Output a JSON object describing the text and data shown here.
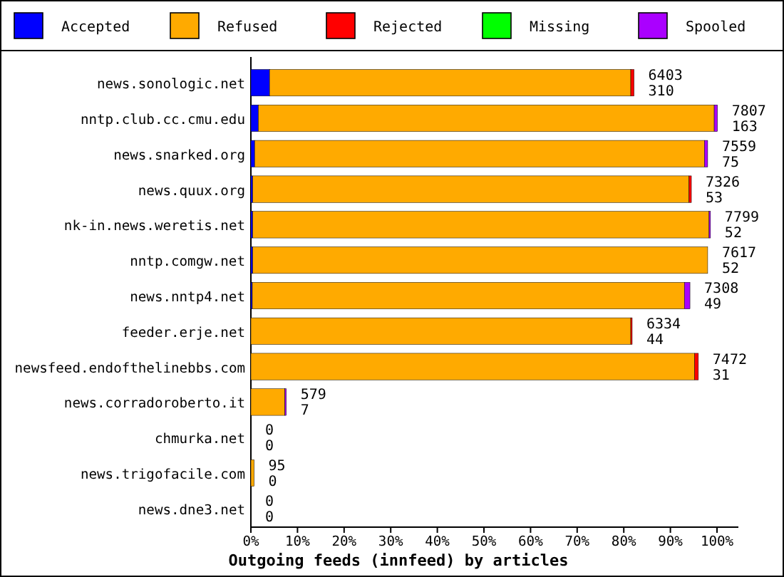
{
  "chart_data": {
    "type": "bar",
    "orientation": "horizontal",
    "stacked": true,
    "legend": "top",
    "xlabel": "Outgoing feeds (innfeed) by articles",
    "categories": [
      "news.sonologic.net",
      "nntp.club.cc.cmu.edu",
      "news.snarked.org",
      "news.quux.org",
      "nk-in.news.weretis.net",
      "nntp.comgw.net",
      "news.nntp4.net",
      "feeder.erje.net",
      "newsfeed.endofthelinebbs.com",
      "news.corradoroberto.it",
      "chmurka.net",
      "news.trigofacile.com",
      "news.dne3.net"
    ],
    "series": [
      {
        "name": "Accepted",
        "color": "#0000ff",
        "values": [
          4.0,
          1.6,
          0.8,
          0.4,
          0.4,
          0.4,
          0.3,
          0,
          0,
          0,
          0,
          0,
          0
        ]
      },
      {
        "name": "Refused",
        "color": "#ffaa00",
        "values": [
          77.5,
          97.8,
          96.5,
          93.6,
          97.9,
          97.6,
          92.7,
          81.5,
          95.2,
          7.3,
          0,
          0.7,
          0
        ]
      },
      {
        "name": "Rejected",
        "color": "#ff0000",
        "values": [
          0.7,
          0,
          0,
          0.5,
          0,
          0,
          0,
          0.3,
          0.8,
          0,
          0,
          0,
          0
        ]
      },
      {
        "name": "Missing",
        "color": "#00ff00",
        "values": [
          0,
          0,
          0,
          0,
          0,
          0,
          0,
          0,
          0,
          0,
          0,
          0,
          0
        ]
      },
      {
        "name": "Spooled",
        "color": "#aa00ff",
        "values": [
          0,
          0.7,
          0.7,
          0,
          0.3,
          0,
          1.2,
          0,
          0,
          0.3,
          0,
          0,
          0
        ]
      }
    ],
    "xlim": [
      0,
      100
    ],
    "xticks": [
      {
        "value": 0,
        "label": "0%"
      },
      {
        "value": 10,
        "label": "10%"
      },
      {
        "value": 20,
        "label": "20%"
      },
      {
        "value": 30,
        "label": "30%"
      },
      {
        "value": 40,
        "label": "40%"
      },
      {
        "value": 50,
        "label": "50%"
      },
      {
        "value": 60,
        "label": "60%"
      },
      {
        "value": 70,
        "label": "70%"
      },
      {
        "value": 80,
        "label": "80%"
      },
      {
        "value": 90,
        "label": "90%"
      },
      {
        "value": 100,
        "label": "100%"
      }
    ],
    "annotations": [
      "6403\n310",
      "7807\n163",
      "7559\n75",
      "7326\n53",
      "7799\n52",
      "7617\n52",
      "7308\n49",
      "6334\n44",
      "7472\n31",
      "579\n7",
      "0\n0",
      "95\n0",
      "0\n0"
    ]
  }
}
